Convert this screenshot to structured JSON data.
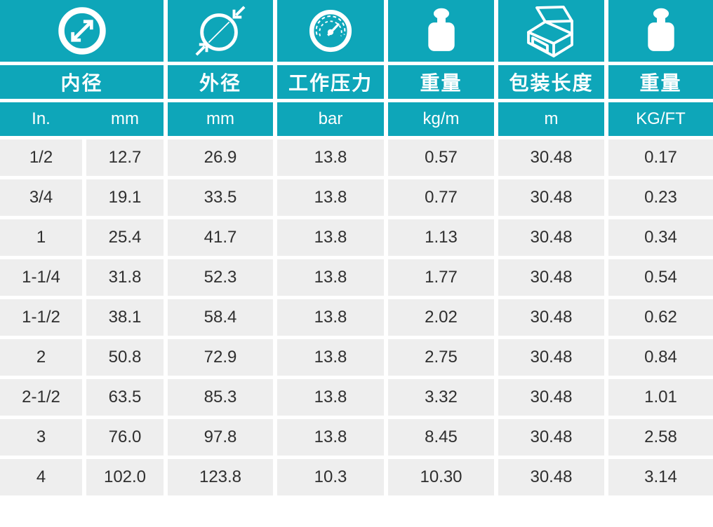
{
  "colors": {
    "header_bg": "#0ea6b9",
    "header_text": "#ffffff",
    "cell_bg": "#eeeeee",
    "cell_text": "#2f2f2f",
    "page_bg": "#ffffff"
  },
  "icons": [
    "inner-diameter",
    "outer-diameter",
    "pressure-gauge",
    "weight",
    "package-box",
    "weight"
  ],
  "chart_data": {
    "type": "table",
    "column_groups": [
      {
        "icon": "inner-diameter",
        "label": "内径",
        "units": [
          "In.",
          "mm"
        ]
      },
      {
        "icon": "outer-diameter",
        "label": "外径",
        "units": [
          "mm"
        ]
      },
      {
        "icon": "pressure-gauge",
        "label": "工作压力",
        "units": [
          "bar"
        ]
      },
      {
        "icon": "weight",
        "label": "重量",
        "units": [
          "kg/m"
        ]
      },
      {
        "icon": "package-box",
        "label": "包装长度",
        "units": [
          "m"
        ]
      },
      {
        "icon": "weight",
        "label": "重量",
        "units": [
          "KG/FT"
        ]
      }
    ],
    "columns_flat": [
      "In.",
      "mm",
      "mm",
      "bar",
      "kg/m",
      "m",
      "KG/FT"
    ],
    "rows": [
      [
        "1/2",
        "12.7",
        "26.9",
        "13.8",
        "0.57",
        "30.48",
        "0.17"
      ],
      [
        "3/4",
        "19.1",
        "33.5",
        "13.8",
        "0.77",
        "30.48",
        "0.23"
      ],
      [
        "1",
        "25.4",
        "41.7",
        "13.8",
        "1.13",
        "30.48",
        "0.34"
      ],
      [
        "1-1/4",
        "31.8",
        "52.3",
        "13.8",
        "1.77",
        "30.48",
        "0.54"
      ],
      [
        "1-1/2",
        "38.1",
        "58.4",
        "13.8",
        "2.02",
        "30.48",
        "0.62"
      ],
      [
        "2",
        "50.8",
        "72.9",
        "13.8",
        "2.75",
        "30.48",
        "0.84"
      ],
      [
        "2-1/2",
        "63.5",
        "85.3",
        "13.8",
        "3.32",
        "30.48",
        "1.01"
      ],
      [
        "3",
        "76.0",
        "97.8",
        "13.8",
        "8.45",
        "30.48",
        "2.58"
      ],
      [
        "4",
        "102.0",
        "123.8",
        "10.3",
        "10.30",
        "30.48",
        "3.14"
      ]
    ]
  }
}
